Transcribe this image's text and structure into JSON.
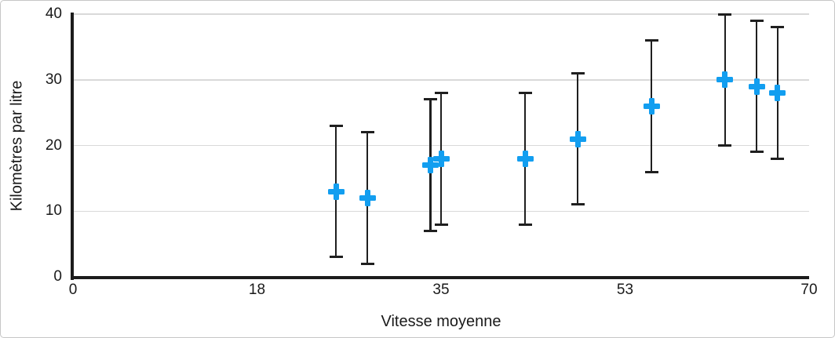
{
  "chart_data": {
    "type": "scatter",
    "title": "",
    "xlabel": "Vitesse moyenne",
    "ylabel": "Kilomètres par litre",
    "xlim": [
      0,
      70
    ],
    "ylim": [
      0,
      40
    ],
    "xticks": [
      "0",
      "18",
      "35",
      "53",
      "70"
    ],
    "yticks": [
      "0",
      "10",
      "20",
      "30",
      "40"
    ],
    "grid": "horizontal-only",
    "legend": false,
    "marker": "plus",
    "marker_color": "#129ef0",
    "error_bar_color": "#1f1f1f",
    "error_bar": "plus-minus-10",
    "points": [
      {
        "x": 25,
        "y": 13,
        "y_low": 3,
        "y_high": 23
      },
      {
        "x": 28,
        "y": 12,
        "y_low": 2,
        "y_high": 22
      },
      {
        "x": 34,
        "y": 17,
        "y_low": 7,
        "y_high": 27
      },
      {
        "x": 35,
        "y": 18,
        "y_low": 8,
        "y_high": 28
      },
      {
        "x": 43,
        "y": 18,
        "y_low": 8,
        "y_high": 28
      },
      {
        "x": 48,
        "y": 21,
        "y_low": 11,
        "y_high": 31
      },
      {
        "x": 55,
        "y": 26,
        "y_low": 16,
        "y_high": 36
      },
      {
        "x": 62,
        "y": 30,
        "y_low": 20,
        "y_high": 40
      },
      {
        "x": 65,
        "y": 29,
        "y_low": 19,
        "y_high": 39
      },
      {
        "x": 67,
        "y": 28,
        "y_low": 18,
        "y_high": 38
      }
    ]
  }
}
